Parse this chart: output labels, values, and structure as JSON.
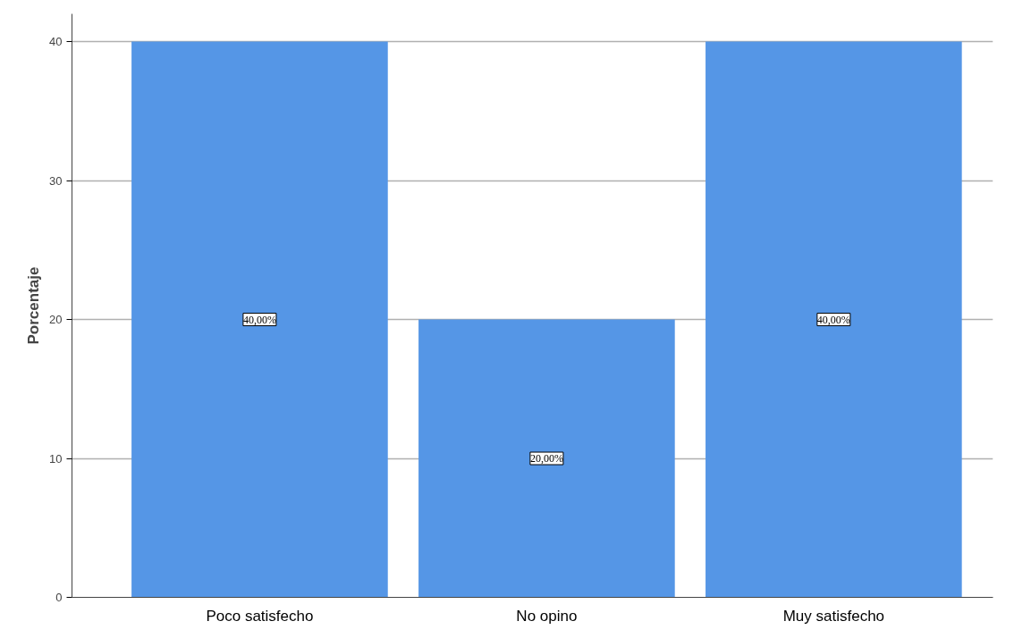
{
  "chart_data": {
    "type": "bar",
    "ylabel": "Porcentaje",
    "categories": [
      "Poco satisfecho",
      "No opino",
      "Muy satisfecho"
    ],
    "values": [
      40,
      20,
      40
    ],
    "color": "#5596e6",
    "value_labels": [
      "40,00%",
      "20,00%",
      "40,00%"
    ],
    "ylim": [
      0,
      42
    ],
    "yticks": [
      0,
      10,
      20,
      30,
      40
    ],
    "grid": "y"
  }
}
